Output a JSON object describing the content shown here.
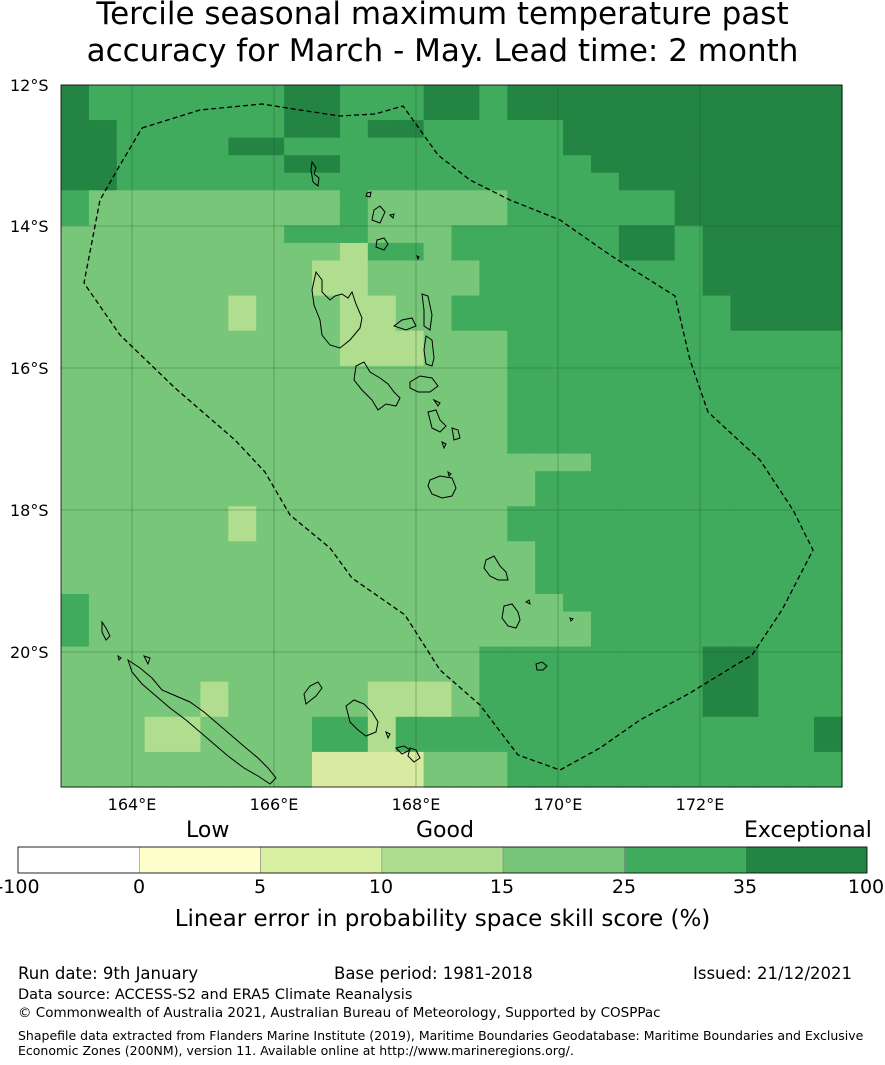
{
  "title": "Tercile seasonal maximum temperature past\naccuracy for March - May. Lead time: 2 month",
  "map": {
    "lat_labels": [
      "12°S",
      "14°S",
      "16°S",
      "18°S",
      "20°S"
    ],
    "lon_labels": [
      "164°E",
      "166°E",
      "168°E",
      "170°E",
      "172°E"
    ],
    "bounds": {
      "lon_min": 163.0,
      "lon_max": 174.0,
      "lat_top": -12.0,
      "lat_bottom": -21.85
    },
    "grid_cell_deg": 0.833,
    "category_colors": {
      "1": "#fefecc",
      "2": "#d8eba0",
      "3": "#b0de8e",
      "4": "#78c679",
      "5": "#41ab5d",
      "6": "#238443"
    },
    "skill_grid": [
      "6555555566555665666666666666",
      "6555555566555665666666666666",
      "6655555566566555556666666666",
      "6655556655555555556666666666",
      "6655555566555555555666666666",
      "6655555555555555555566666666",
      "5444444444544444555555666666",
      "5444444444544444555555666666",
      "4444444455544455555566566666",
      "4444444444355455555566566666",
      "4444444443344445555555566666",
      "4444444443344445555555566666",
      "4444443444334455555555556666",
      "4444443444334455555555556666",
      "4444444444333444555555555555",
      "4444444444333444555555555555",
      "4444444444444444555555555555",
      "4444444444444444555555555555",
      "4444444444444444555555555555",
      "4444444444444444555555555555",
      "4444444444444444555555555555",
      "4444444444444444444555555555",
      "4444444444444444455555555555",
      "4444444444444444455555555555",
      "4444443444444444555555555555",
      "4444443444444444555555555555",
      "4444444444444444455555555555",
      "4444444444444444455555555555",
      "4444444444444444455555555555",
      "5444444444444444445555555555",
      "5444444444444444444555555555",
      "5444444444444444444555555555",
      "4444444444444445555555566555",
      "4444444444444445555555566555",
      "4444434444433345555555566555",
      "4444434444433345555555566555",
      "4443344445535555555555555556",
      "4443344445535555555555555556",
      "4444444442222444555555555555",
      "4444444442222444555555555555"
    ]
  },
  "colorbar": {
    "category_labels": [
      "Low",
      "Good",
      "Exceptional"
    ],
    "ticks": [
      "-100",
      "0",
      "5",
      "10",
      "15",
      "25",
      "35",
      "100"
    ],
    "colors": [
      "#ffffff",
      "#ffffcc",
      "#d9f0a3",
      "#addd8e",
      "#78c679",
      "#41ab5d",
      "#238443"
    ],
    "caption": "Linear error in probability space skill score (%)"
  },
  "footer": {
    "run_date": "Run date: 9th January",
    "base_period": "Base period: 1981-2018",
    "issued": "Issued: 21/12/2021",
    "data_source": "Data source: ACCESS-S2 and ERA5 Climate Reanalysis",
    "copyright": "© Commonwealth of Australia 2021, Australian Bureau of Meteorology, Supported by COSPPac",
    "shapefile_line1": "Shapefile data extracted from Flanders Marine Institute (2019), Maritime Boundaries Geodatabase: Maritime Boundaries and Exclusive",
    "shapefile_line2": "Economic Zones (200NM), version 11. Available online at http://www.marineregions.org/."
  }
}
